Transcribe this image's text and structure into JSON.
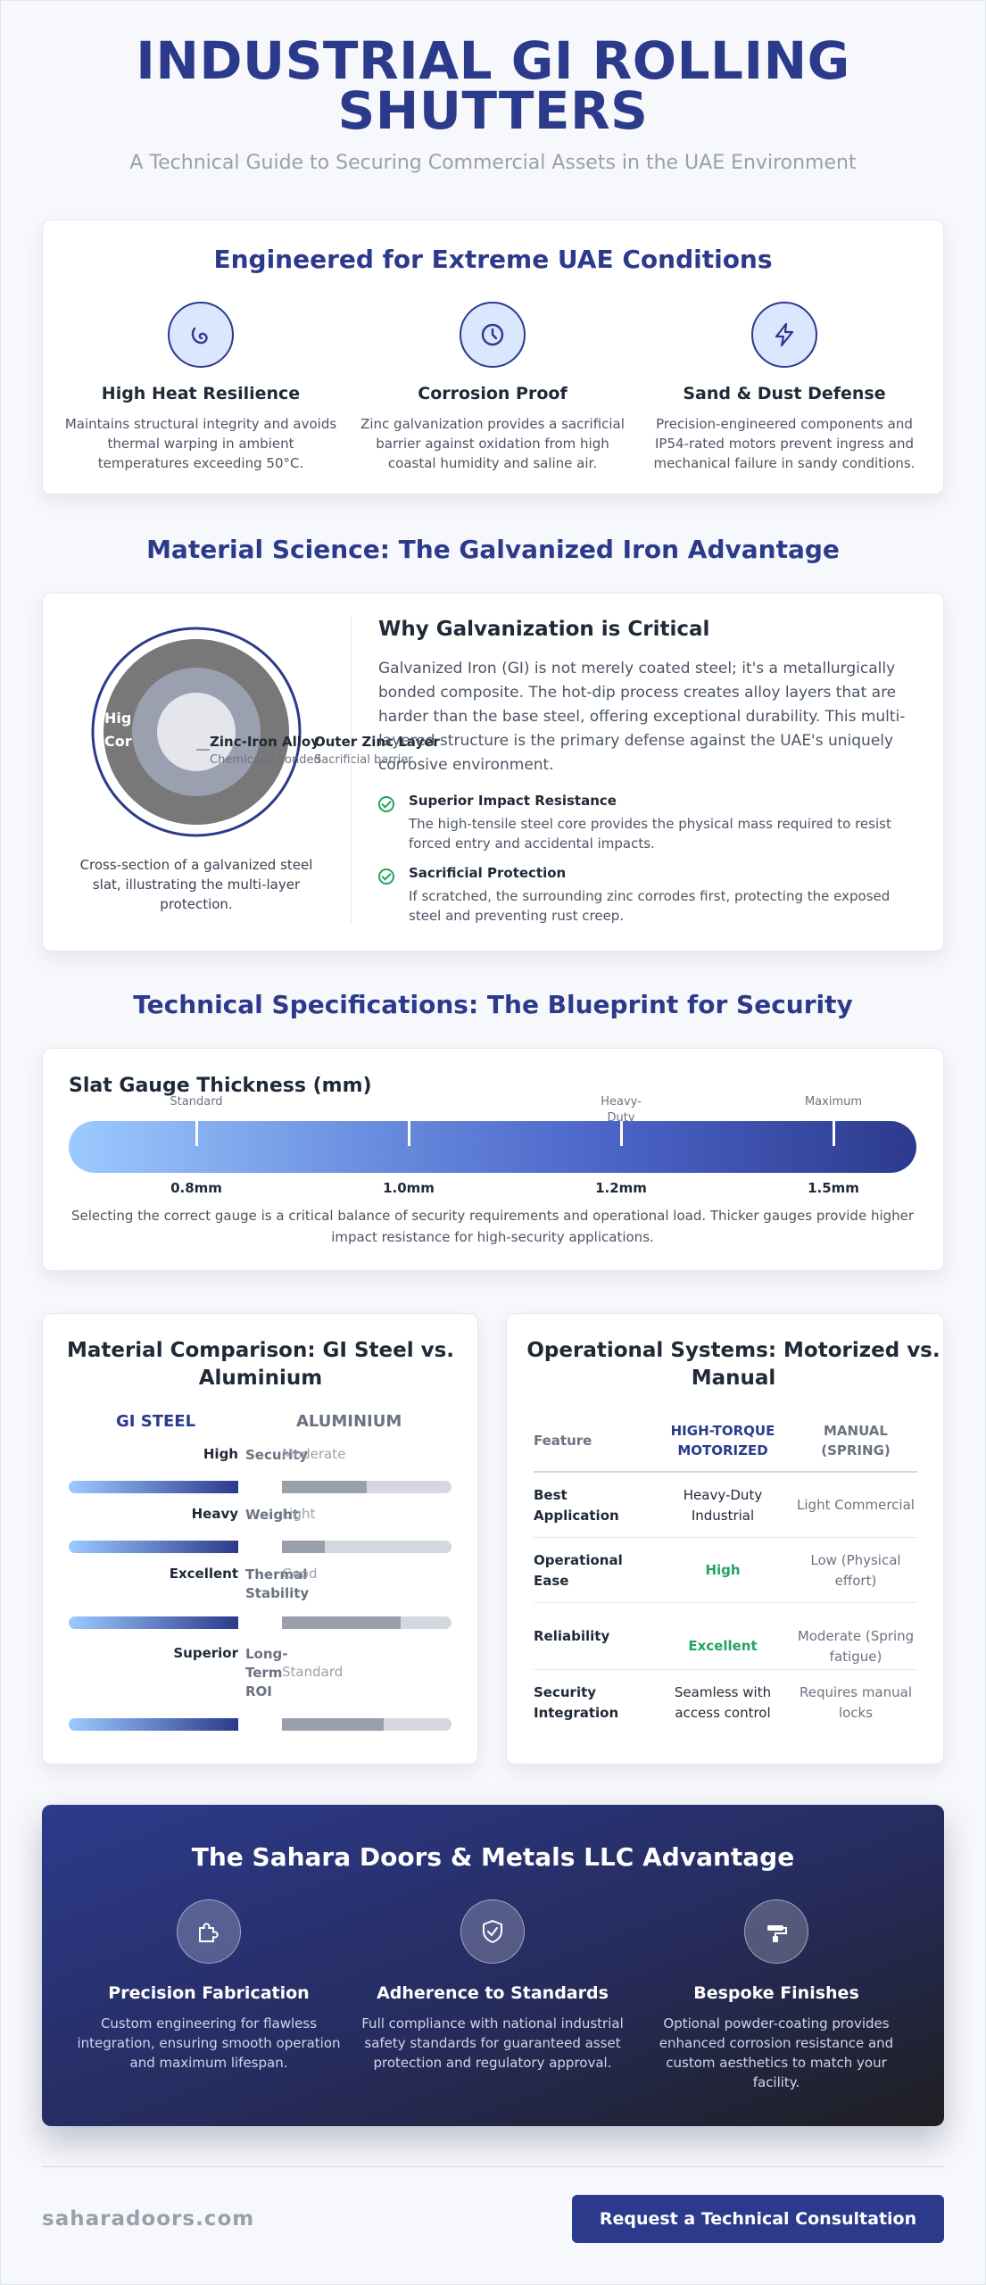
{
  "hero": {
    "title_line1": "INDUSTRIAL GI ROLLING",
    "title_line2": "SHUTTERS",
    "subtitle": "A Technical Guide to Securing Commercial Assets in the UAE Environment"
  },
  "conditions": {
    "title": "Engineered for Extreme UAE Conditions",
    "features": [
      {
        "icon": "heat-swirl-icon",
        "title": "High Heat Resilience",
        "text": "Maintains structural integrity and avoids thermal warping in ambient temperatures exceeding 50°C."
      },
      {
        "icon": "clock-icon",
        "title": "Corrosion Proof",
        "text": "Zinc galvanization provides a sacrificial barrier against oxidation from high coastal humidity and saline air."
      },
      {
        "icon": "lightning-icon",
        "title": "Sand & Dust Defense",
        "text": "Precision-engineered components and IP54-rated motors prevent ingress and mechanical failure in sandy conditions."
      }
    ]
  },
  "material": {
    "title": "Material Science: The Galvanized Iron Advantage",
    "ring_inner_line1": "Hig",
    "ring_inner_line2": "Cor",
    "ring_labels": [
      {
        "label": "Zinc-Iron Alloy",
        "sub": "Chemically bonded"
      },
      {
        "label": "Outer Zinc Layer",
        "sub": "Sacrificial barrier"
      }
    ],
    "caption": "Cross-section of a galvanized steel slat, illustrating the multi-layer protection.",
    "why_title": "Why Galvanization is Critical",
    "why_body": "Galvanized Iron (GI) is not merely coated steel; it's a metallurgically bonded composite. The hot-dip process creates alloy layers that are harder than the base steel, offering exceptional durability. This multi-layered structure is the primary defense against the UAE's uniquely corrosive environment.",
    "points": [
      {
        "title": "Superior Impact Resistance",
        "text": "The high-tensile steel core provides the physical mass required to resist forced entry and accidental impacts."
      },
      {
        "title": "Sacrificial Protection",
        "text": "If scratched, the surrounding zinc corrodes first, protecting the exposed steel and preventing rust creep."
      }
    ]
  },
  "specs": {
    "title": "Technical Specifications: The Blueprint for Security",
    "gauge_title": "Slat Gauge Thickness (mm)",
    "ticks": [
      {
        "top": "Standard",
        "value": "0.8mm"
      },
      {
        "top": "",
        "value": "1.0mm"
      },
      {
        "top": "Heavy-Duty",
        "value": "1.2mm"
      },
      {
        "top": "Maximum",
        "value": "1.5mm"
      }
    ],
    "note": "Selecting the correct gauge is a critical balance of security requirements and operational load. Thicker gauges provide higher impact resistance for high-security applications."
  },
  "comparison": {
    "title": "Material Comparison: GI Steel vs. Aluminium",
    "head_left": "GI STEEL",
    "head_right": "ALUMINIUM",
    "rows": [
      {
        "left": "High",
        "metric": "Security",
        "right": "Moderate",
        "gi_fraction": 1.0,
        "al_fraction": 0.5
      },
      {
        "left": "Heavy",
        "metric": "Weight",
        "right": "Light",
        "gi_fraction": 1.0,
        "al_fraction": 0.25
      },
      {
        "left": "Excellent",
        "metric": "Thermal Stability",
        "right": "Good",
        "gi_fraction": 1.0,
        "al_fraction": 0.7
      },
      {
        "left": "Superior",
        "metric": "Long-Term ROI",
        "right": "Standard",
        "gi_fraction": 1.0,
        "al_fraction": 0.6
      }
    ]
  },
  "operations": {
    "title": "Operational Systems: Motorized vs. Manual",
    "headers": {
      "feature": "Feature",
      "motorized": "HIGH-TORQUE MOTORIZED",
      "manual": "MANUAL (SPRING)"
    },
    "rows": [
      {
        "feature": "Best Application",
        "motorized": "Heavy-Duty Industrial",
        "manual": "Light Commercial"
      },
      {
        "feature": "Operational Ease",
        "motorized": "High",
        "manual": "Low (Physical effort)"
      },
      {
        "feature": "Reliability",
        "motorized": "Excellent",
        "manual": "Moderate (Spring fatigue)"
      },
      {
        "feature": "Security Integration",
        "motorized": "Seamless with access control",
        "manual": "Requires manual locks"
      }
    ]
  },
  "advantage": {
    "title": "The Sahara Doors & Metals LLC Advantage",
    "features": [
      {
        "icon": "puzzle-icon",
        "title": "Precision Fabrication",
        "text": "Custom engineering for flawless integration, ensuring smooth operation and maximum lifespan."
      },
      {
        "icon": "shield-check-icon",
        "title": "Adherence to Standards",
        "text": "Full compliance with national industrial safety standards for guaranteed asset protection and regulatory approval."
      },
      {
        "icon": "paint-roller-icon",
        "title": "Bespoke Finishes",
        "text": "Optional powder-coating provides enhanced corrosion resistance and custom aesthetics to match your facility."
      }
    ]
  },
  "footer": {
    "brand": "saharadoors.com",
    "cta": "Request a Technical Consultation"
  },
  "colors": {
    "primary": "#2c3a8c",
    "accent_green": "#22a45d",
    "muted": "#9aa0ab"
  }
}
